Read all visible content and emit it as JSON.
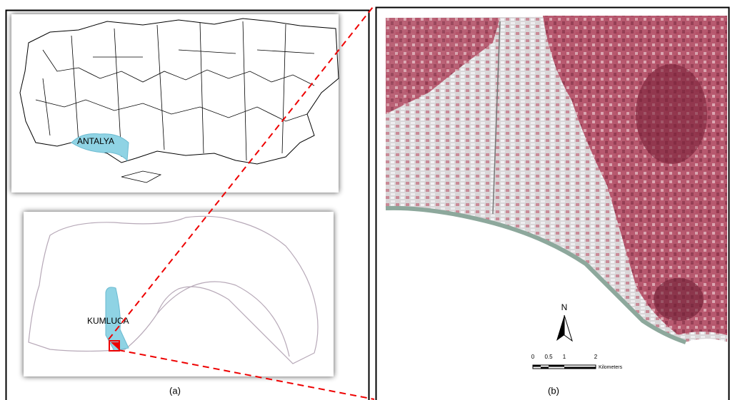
{
  "panels": [
    {
      "label": "(a)",
      "insets": [
        {
          "region": "ANTALYA"
        },
        {
          "region": "KUMLUCA"
        }
      ]
    },
    {
      "label": "(b)",
      "north": "N",
      "scale_bar": {
        "ticks": [
          "0",
          "0.5",
          "1",
          "2"
        ],
        "unit": "Kilometers"
      }
    }
  ]
}
